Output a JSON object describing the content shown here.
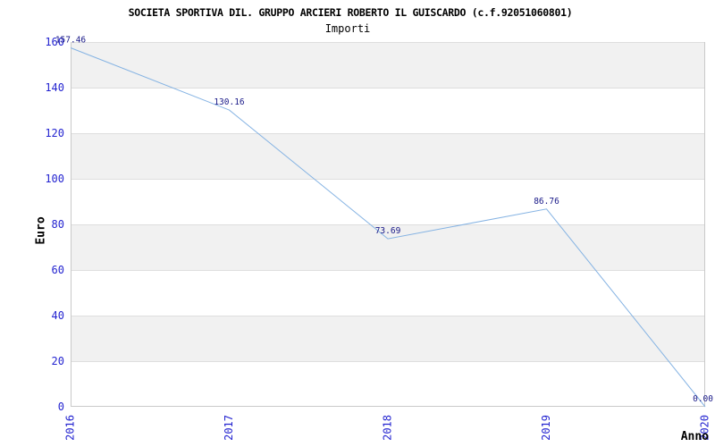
{
  "chart_data": {
    "type": "line",
    "title": "SOCIETA SPORTIVA DIL. GRUPPO ARCIERI ROBERTO IL GUISCARDO (c.f.92051060801)",
    "subtitle": "Importi",
    "xlabel": "Anno",
    "ylabel": "Euro",
    "categories": [
      "2016",
      "2017",
      "2018",
      "2019",
      "2020"
    ],
    "series": [
      {
        "name": "Importi",
        "values": [
          157.46,
          130.16,
          73.69,
          86.76,
          0.0
        ],
        "point_labels": [
          "157.46",
          "130.16",
          "73.69",
          "86.76",
          "0.00"
        ]
      }
    ],
    "ylim": [
      0,
      160
    ],
    "ytick_step": 20,
    "ytick_labels": [
      "0",
      "20",
      "40",
      "60",
      "80",
      "100",
      "120",
      "140",
      "160"
    ],
    "grid": "horizontal alternating bands, gridline every 20",
    "legend": "none",
    "colors": {
      "line": "#85b3e3",
      "tick_label": "#2424d0",
      "point_label": "#191988",
      "band_fill": "#f1f1f1",
      "gridline": "#dedede",
      "spine": "#c9c9c9",
      "title_text": "#000000",
      "background": "#ffffff"
    }
  }
}
